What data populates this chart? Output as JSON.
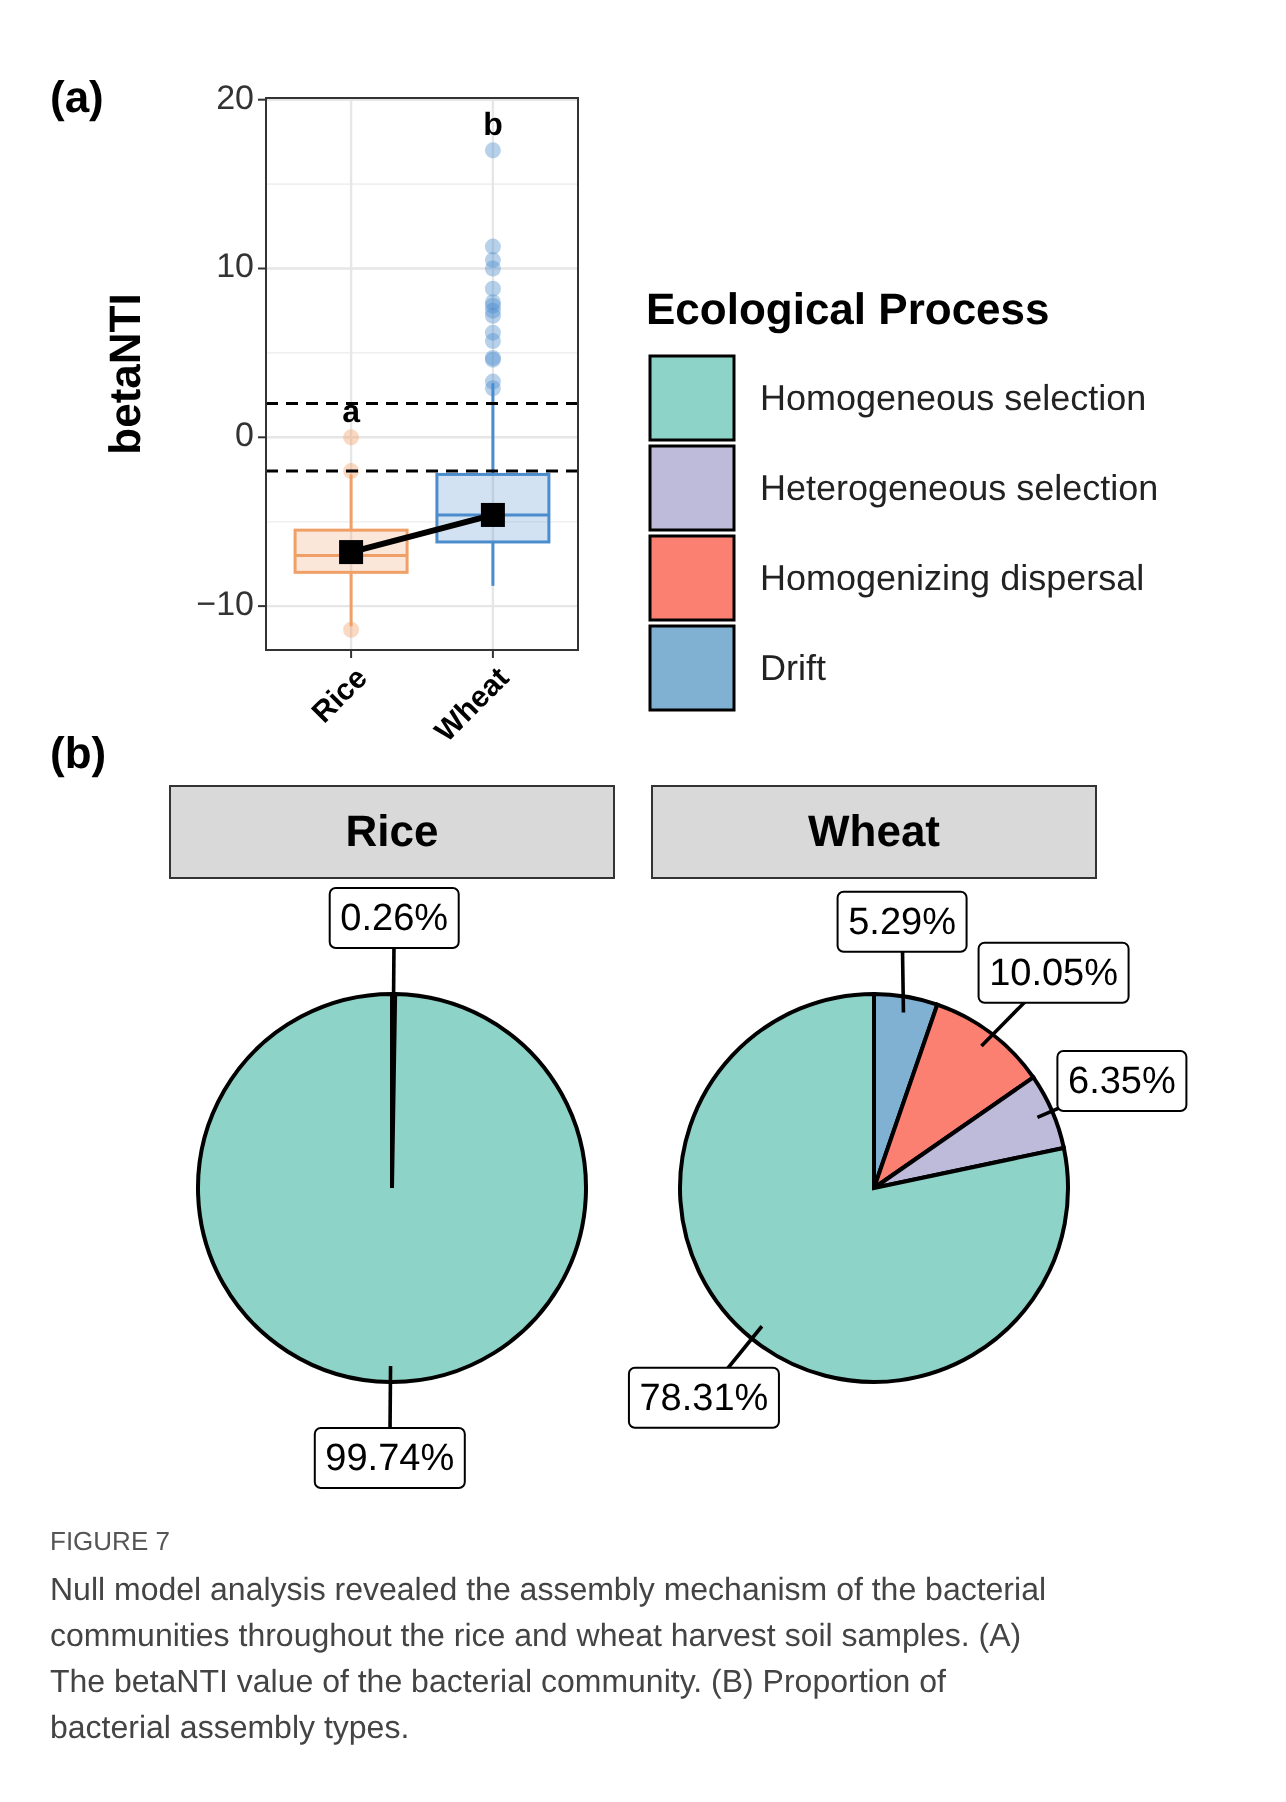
{
  "chart_data": [
    {
      "type": "box",
      "title": "(a)",
      "ylabel": "betaNTI",
      "categories": [
        "Rice",
        "Wheat"
      ],
      "colors": [
        "#f0a066",
        "#4a8ccc"
      ],
      "boxes": [
        {
          "low": -11.2,
          "q1": -8,
          "median": -7,
          "q3": -5.5,
          "high": -2.2,
          "outliers": [
            0,
            -2,
            -11.4
          ]
        },
        {
          "low": -8.8,
          "q1": -6.2,
          "median": -4.6,
          "q3": -2.2,
          "high": 3.2,
          "outliers": [
            17,
            11.3,
            10.5,
            10,
            8.8,
            8,
            7.8,
            7.5,
            7.2,
            6.2,
            5.7,
            4.7,
            4.6,
            3.3,
            2.9
          ]
        }
      ],
      "series": [
        {
          "type": "line",
          "values": [
            -6.8,
            -4.6
          ],
          "color": "#000000"
        }
      ],
      "marker": "square",
      "ylim": [
        -12.6,
        20.1
      ],
      "yticks": [
        -10,
        0,
        10,
        20
      ],
      "grid": true,
      "ref_lines": [
        {
          "axis": "y",
          "value": 2,
          "line_style": "dashed"
        },
        {
          "axis": "y",
          "value": -2,
          "line_style": "dashed"
        }
      ],
      "annotations": [
        "a",
        "b"
      ]
    },
    {
      "type": "pie",
      "title": "Rice",
      "subtitle": "(b)",
      "categories": [
        null,
        null
      ],
      "values": [
        99.74,
        0.26
      ],
      "colors": [
        "#8dd3c7",
        "#80b1d3"
      ],
      "value_labels": [
        "99.74%",
        "0.26%"
      ]
    },
    {
      "type": "pie",
      "title": "Wheat",
      "legend_title": "Ecological Process",
      "legend": "top right",
      "categories": [
        "Homogeneous selection",
        "Heterogeneous selection",
        "Homogenizing dispersal",
        "Drift"
      ],
      "values": [
        78.31,
        6.35,
        10.05,
        5.29
      ],
      "colors": [
        "#8dd3c7",
        "#bebada",
        "#fb8072",
        "#80b1d3"
      ],
      "value_labels": [
        "78.31%",
        "6.35%",
        "10.05%",
        "5.29%"
      ],
      "annotations": [
        "FIGURE 7",
        "Null model analysis revealed the assembly mechanism of the bacterial communities throughout the rice and wheat harvest soil samples. (A) The betaNTI value of the bacterial community. (B) Proportion of bacterial assembly types."
      ]
    }
  ]
}
